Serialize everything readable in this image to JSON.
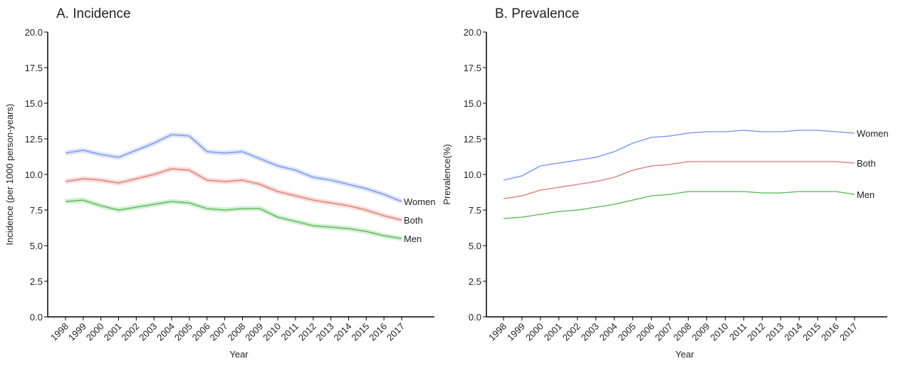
{
  "chart_data": [
    {
      "type": "line",
      "title": "A. Incidence",
      "x_label": "Year",
      "y_label": "Incidence (per 1000 person-years)",
      "categories": [
        "1998",
        "1999",
        "2000",
        "2001",
        "2002",
        "2003",
        "2004",
        "2005",
        "2006",
        "2007",
        "2008",
        "2009",
        "2010",
        "2011",
        "2012",
        "2013",
        "2014",
        "2015",
        "2016",
        "2017"
      ],
      "ylim": [
        0,
        20
      ],
      "yticks": [
        {
          "value": 0,
          "label": "0.0"
        },
        {
          "value": 2.5,
          "label": "2.5"
        },
        {
          "value": 5,
          "label": "5.0"
        },
        {
          "value": 7.5,
          "label": "7.5"
        },
        {
          "value": 10,
          "label": "10.0"
        },
        {
          "value": 12.5,
          "label": "12.5"
        },
        {
          "value": 15,
          "label": "15.0"
        },
        {
          "value": 17.5,
          "label": "17.5"
        },
        {
          "value": 20,
          "label": "20.0"
        }
      ],
      "confidence_band": true,
      "series": [
        {
          "name": "Women",
          "color": "#6f8ff0",
          "values": [
            11.5,
            11.7,
            11.4,
            11.2,
            11.7,
            12.2,
            12.8,
            12.7,
            11.6,
            11.5,
            11.6,
            11.1,
            10.6,
            10.3,
            9.8,
            9.6,
            9.3,
            9.0,
            8.6,
            8.1
          ]
        },
        {
          "name": "Both",
          "color": "#e0746c",
          "values": [
            9.5,
            9.7,
            9.6,
            9.4,
            9.7,
            10.0,
            10.4,
            10.3,
            9.6,
            9.5,
            9.6,
            9.3,
            8.8,
            8.5,
            8.2,
            8.0,
            7.8,
            7.5,
            7.1,
            6.8
          ]
        },
        {
          "name": "Men",
          "color": "#4cb84c",
          "values": [
            8.1,
            8.2,
            7.8,
            7.5,
            7.7,
            7.9,
            8.1,
            8.0,
            7.6,
            7.5,
            7.6,
            7.6,
            7.0,
            6.7,
            6.4,
            6.3,
            6.2,
            6.0,
            5.7,
            5.5
          ]
        }
      ]
    },
    {
      "type": "line",
      "title": "B. Prevalence",
      "x_label": "Year",
      "y_label": "Prevalence(%)",
      "categories": [
        "1998",
        "1999",
        "2000",
        "2001",
        "2002",
        "2003",
        "2004",
        "2005",
        "2006",
        "2007",
        "2008",
        "2009",
        "2010",
        "2011",
        "2012",
        "2013",
        "2014",
        "2015",
        "2016",
        "2017"
      ],
      "ylim": [
        0,
        20
      ],
      "yticks": [
        {
          "value": 0,
          "label": "0.0"
        },
        {
          "value": 2.5,
          "label": "2.5"
        },
        {
          "value": 5,
          "label": "5.0"
        },
        {
          "value": 7.5,
          "label": "7.5"
        },
        {
          "value": 10,
          "label": "10.0"
        },
        {
          "value": 12.5,
          "label": "12.5"
        },
        {
          "value": 15,
          "label": "15.0"
        },
        {
          "value": 17.5,
          "label": "17.5"
        },
        {
          "value": 20,
          "label": "20.0"
        }
      ],
      "confidence_band": false,
      "series": [
        {
          "name": "Women",
          "color": "#6f8ff0",
          "values": [
            9.6,
            9.9,
            10.6,
            10.8,
            11.0,
            11.2,
            11.6,
            12.2,
            12.6,
            12.7,
            12.9,
            13.0,
            13.0,
            13.1,
            13.0,
            13.0,
            13.1,
            13.1,
            13.0,
            12.9
          ]
        },
        {
          "name": "Both",
          "color": "#e0746c",
          "values": [
            8.3,
            8.5,
            8.9,
            9.1,
            9.3,
            9.5,
            9.8,
            10.3,
            10.6,
            10.7,
            10.9,
            10.9,
            10.9,
            10.9,
            10.9,
            10.9,
            10.9,
            10.9,
            10.9,
            10.8
          ]
        },
        {
          "name": "Men",
          "color": "#4cb84c",
          "values": [
            6.9,
            7.0,
            7.2,
            7.4,
            7.5,
            7.7,
            7.9,
            8.2,
            8.5,
            8.6,
            8.8,
            8.8,
            8.8,
            8.8,
            8.7,
            8.7,
            8.8,
            8.8,
            8.8,
            8.6
          ]
        }
      ]
    }
  ]
}
